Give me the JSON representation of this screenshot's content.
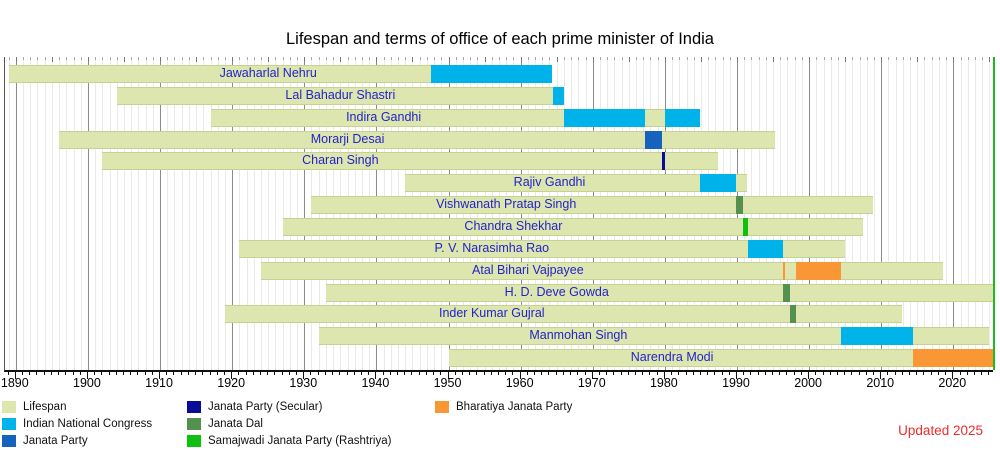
{
  "title": "Lifespan and terms of office of each prime minister of India",
  "updated_note": "Updated 2025",
  "colors": {
    "lifespan": "#dde6ae",
    "lifespan_edge": "#c6d292",
    "INC": "#00b2ea",
    "JP": "#1563bd",
    "JPS": "#0b0b9a",
    "JD": "#549150",
    "SJP": "#0fc00f",
    "BJP": "#f89733",
    "present_line": "#1dbb1d",
    "name_text": "#2323c8",
    "updated_text": "#ee2c2c",
    "grid_minor": "#e9e9e9",
    "grid_major": "#8c8c8c",
    "tick_minor": "#aaaaaa",
    "tick_mid": "#777777"
  },
  "axis": {
    "year_min": 1888.5,
    "year_max": 2025.5,
    "decades": [
      1890,
      1900,
      1910,
      1920,
      1930,
      1940,
      1950,
      1960,
      1970,
      1980,
      1990,
      2000,
      2010,
      2020
    ]
  },
  "chart_data": {
    "type": "timeline",
    "unit": "decimal_years",
    "prime_ministers": [
      {
        "name": "Jawaharlal Nehru",
        "lifespan": [
          1889,
          1964.41
        ],
        "label_year": 1925,
        "terms": [
          {
            "start": 1947.62,
            "end": 1964.41,
            "party": "INC"
          }
        ]
      },
      {
        "name": "Lal Bahadur Shastri",
        "lifespan": [
          1904,
          1966.03
        ],
        "label_year": 1935,
        "terms": [
          {
            "start": 1964.44,
            "end": 1966.03,
            "party": "INC"
          }
        ]
      },
      {
        "name": "Indira Gandhi",
        "lifespan": [
          1917,
          1984.83
        ],
        "label_year": 1941,
        "terms": [
          {
            "start": 1966.06,
            "end": 1977.23,
            "party": "INC"
          },
          {
            "start": 1980.04,
            "end": 1984.83,
            "party": "INC"
          }
        ]
      },
      {
        "name": "Morarji Desai",
        "lifespan": [
          1896,
          1995.27
        ],
        "label_year": 1936,
        "terms": [
          {
            "start": 1977.23,
            "end": 1979.57,
            "party": "JP"
          }
        ]
      },
      {
        "name": "Charan Singh",
        "lifespan": [
          1902,
          1987.41
        ],
        "label_year": 1935,
        "terms": [
          {
            "start": 1979.57,
            "end": 1980.04,
            "party": "JPS"
          }
        ]
      },
      {
        "name": "Rajiv Gandhi",
        "lifespan": [
          1944,
          1991.38
        ],
        "label_year": 1964,
        "terms": [
          {
            "start": 1984.83,
            "end": 1989.92,
            "party": "INC"
          }
        ]
      },
      {
        "name": "Vishwanath Pratap Singh",
        "lifespan": [
          1931,
          2008.9
        ],
        "label_year": 1958,
        "terms": [
          {
            "start": 1989.92,
            "end": 1990.86,
            "party": "JD"
          }
        ]
      },
      {
        "name": "Chandra Shekhar",
        "lifespan": [
          1927,
          2007.52
        ],
        "label_year": 1959,
        "terms": [
          {
            "start": 1990.86,
            "end": 1991.47,
            "party": "SJP"
          }
        ]
      },
      {
        "name": "P. V. Narasimha Rao",
        "lifespan": [
          1921,
          2004.98
        ],
        "label_year": 1956,
        "terms": [
          {
            "start": 1991.47,
            "end": 1996.37,
            "party": "INC"
          }
        ]
      },
      {
        "name": "Atal Bihari Vajpayee",
        "lifespan": [
          1924,
          2018.62
        ],
        "label_year": 1961,
        "terms": [
          {
            "start": 1996.37,
            "end": 1996.42,
            "party": "BJP"
          },
          {
            "start": 1998.21,
            "end": 2004.39,
            "party": "BJP"
          }
        ]
      },
      {
        "name": "H. D. Deve Gowda",
        "lifespan": [
          1933,
          2025.5
        ],
        "label_year": 1965,
        "terms": [
          {
            "start": 1996.42,
            "end": 1997.3,
            "party": "JD"
          }
        ]
      },
      {
        "name": "Inder Kumar Gujral",
        "lifespan": [
          1919,
          2012.91
        ],
        "label_year": 1956,
        "terms": [
          {
            "start": 1997.3,
            "end": 1998.21,
            "party": "JD"
          }
        ]
      },
      {
        "name": "Manmohan Singh",
        "lifespan": [
          1932,
          2024.98
        ],
        "label_year": 1968,
        "terms": [
          {
            "start": 2004.39,
            "end": 2014.4,
            "party": "INC"
          }
        ]
      },
      {
        "name": "Narendra Modi",
        "lifespan": [
          1950,
          2025.5
        ],
        "label_year": 1981,
        "terms": [
          {
            "start": 2014.4,
            "end": 2025.5,
            "party": "BJP"
          }
        ]
      }
    ]
  },
  "legend": {
    "items": [
      {
        "label": "Lifespan",
        "party": "lifespan",
        "col": 0,
        "row": 0
      },
      {
        "label": "Indian National Congress",
        "party": "INC",
        "col": 0,
        "row": 1
      },
      {
        "label": "Janata Party",
        "party": "JP",
        "col": 0,
        "row": 2
      },
      {
        "label": "Janata Party (Secular)",
        "party": "JPS",
        "col": 1,
        "row": 0
      },
      {
        "label": "Janata Dal",
        "party": "JD",
        "col": 1,
        "row": 1
      },
      {
        "label": "Samajwadi Janata Party (Rashtriya)",
        "party": "SJP",
        "col": 1,
        "row": 2
      },
      {
        "label": "Bharatiya Janata Party",
        "party": "BJP",
        "col": 2,
        "row": 0
      }
    ]
  }
}
